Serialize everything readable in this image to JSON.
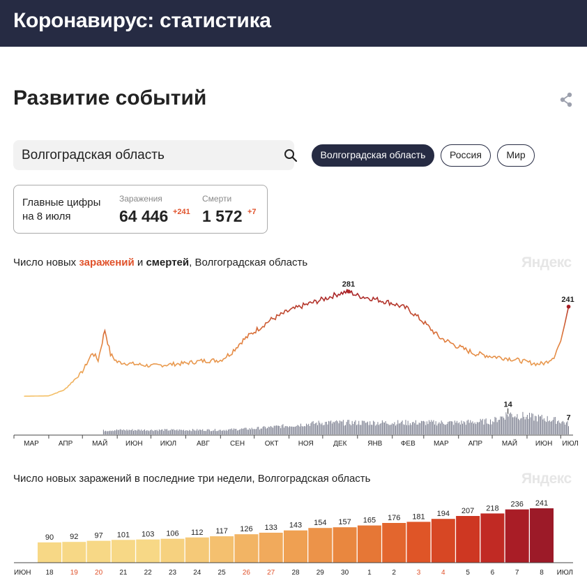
{
  "header": {
    "title": "Коронавирус: статистика"
  },
  "section": {
    "title": "Развитие событий"
  },
  "search": {
    "value": "Волгоградская область"
  },
  "chips": [
    {
      "label": "Волгоградская область",
      "active": true
    },
    {
      "label": "Россия",
      "active": false
    },
    {
      "label": "Мир",
      "active": false
    }
  ],
  "summary": {
    "caption_line1": "Главные цифры",
    "caption_line2": "на 8 июля",
    "infections_label": "Заражения",
    "infections_value": "64 446",
    "infections_delta": "+241",
    "deaths_label": "Смерти",
    "deaths_value": "1 572",
    "deaths_delta": "+7"
  },
  "main_chart": {
    "caption_prefix": "Число новых ",
    "caption_infections": "заражений",
    "caption_and": " и ",
    "caption_deaths": "смертей",
    "caption_suffix": ", Волгоградская область",
    "watermark": "Яндекс"
  },
  "bars_chart": {
    "caption": "Число новых заражений в последние три недели, Волгоградская область",
    "watermark": "Яндекс"
  },
  "chart_data": [
    {
      "type": "line",
      "series": [
        {
          "name": "заражений",
          "x": [
            "2020-03-10",
            "2020-04-01",
            "2020-04-15",
            "2020-05-01",
            "2020-05-10",
            "2020-05-15",
            "2020-05-21",
            "2020-05-26",
            "2020-06-01",
            "2020-06-15",
            "2020-07-01",
            "2020-07-15",
            "2020-08-01",
            "2020-08-15",
            "2020-09-01",
            "2020-09-10",
            "2020-09-20",
            "2020-10-01",
            "2020-10-15",
            "2020-11-01",
            "2020-11-15",
            "2020-12-01",
            "2020-12-15",
            "2020-12-24",
            "2021-01-01",
            "2021-01-15",
            "2021-02-01",
            "2021-02-15",
            "2021-03-01",
            "2021-03-15",
            "2021-04-01",
            "2021-04-15",
            "2021-05-01",
            "2021-05-15",
            "2021-06-01",
            "2021-06-10",
            "2021-06-17",
            "2021-06-25",
            "2021-07-01",
            "2021-07-05",
            "2021-07-08"
          ],
          "y": [
            5,
            6,
            22,
            70,
            120,
            100,
            180,
            115,
            95,
            90,
            85,
            88,
            92,
            98,
            100,
            118,
            150,
            175,
            205,
            230,
            245,
            260,
            275,
            281,
            270,
            262,
            250,
            235,
            200,
            160,
            135,
            118,
            110,
            105,
            95,
            90,
            92,
            110,
            150,
            200,
            241
          ]
        },
        {
          "name": "смертей",
          "x": [
            "2020-04-01",
            "2020-05-01",
            "2020-06-01",
            "2020-07-01",
            "2020-08-01",
            "2020-09-01",
            "2020-10-01",
            "2020-11-01",
            "2020-12-01",
            "2021-01-01",
            "2021-02-01",
            "2021-03-01",
            "2021-04-01",
            "2021-05-01",
            "2021-05-15",
            "2021-06-01",
            "2021-06-15",
            "2021-07-01",
            "2021-07-08"
          ],
          "y": [
            0,
            2,
            3,
            3,
            3,
            3,
            4,
            6,
            8,
            8,
            8,
            8,
            8,
            9,
            14,
            12,
            11,
            9,
            7
          ]
        }
      ],
      "annotations": [
        "281",
        "241",
        "14",
        "7"
      ],
      "x_ticks": [
        "МАР",
        "АПР",
        "МАЙ",
        "ИЮН",
        "ИЮЛ",
        "АВГ",
        "СЕН",
        "ОКТ",
        "НОЯ",
        "ДЕК",
        "ЯНВ",
        "ФЕВ",
        "МАР",
        "АПР",
        "МАЙ",
        "ИЮН",
        "ИЮЛ"
      ]
    },
    {
      "type": "bar",
      "categories": [
        "18",
        "19",
        "20",
        "21",
        "22",
        "23",
        "24",
        "25",
        "26",
        "27",
        "28",
        "29",
        "30",
        "1",
        "2",
        "3",
        "4",
        "5",
        "6",
        "7",
        "8"
      ],
      "weekend": [
        false,
        true,
        true,
        false,
        false,
        false,
        false,
        false,
        true,
        true,
        false,
        false,
        false,
        false,
        false,
        true,
        true,
        false,
        false,
        false,
        false
      ],
      "values": [
        90,
        92,
        97,
        101,
        103,
        106,
        112,
        117,
        126,
        133,
        143,
        154,
        157,
        165,
        176,
        181,
        194,
        207,
        218,
        236,
        241
      ],
      "month_start": "ИЮН",
      "month_end": "ИЮЛ",
      "colors": [
        "#f7d886",
        "#f7d886",
        "#f7d886",
        "#f7d886",
        "#f7d886",
        "#f6d17f",
        "#f5c978",
        "#f4c06f",
        "#f2b464",
        "#f1aa5c",
        "#efa052",
        "#ec9349",
        "#e9873f",
        "#e67736",
        "#e3662e",
        "#df5527",
        "#d74724",
        "#ce3722",
        "#c12a24",
        "#a91d26",
        "#9c1a28"
      ]
    }
  ]
}
